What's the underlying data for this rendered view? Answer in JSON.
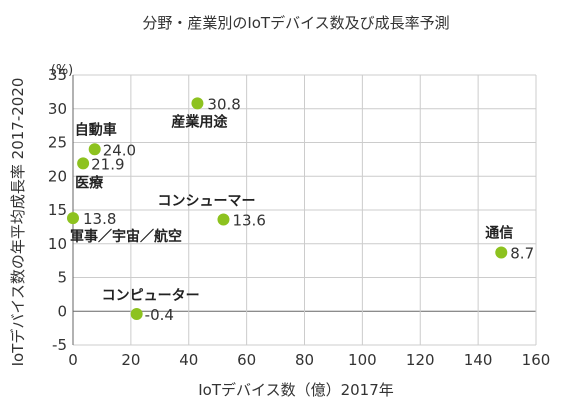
{
  "chart_data": {
    "type": "scatter",
    "title": "分野・産業別のIoTデバイス数及び成長率予測",
    "xlabel": "IoTデバイス数（億）2017年",
    "ylabel": "IoTデバイス数の年平均成長率 2017-2020",
    "y_unit": "(%)",
    "xlim": [
      0,
      160
    ],
    "ylim": [
      -5,
      35
    ],
    "x_ticks": [
      "0",
      "20",
      "40",
      "60",
      "80",
      "100",
      "120",
      "140",
      "160"
    ],
    "y_ticks": [
      "-5",
      "0",
      "5",
      "10",
      "15",
      "20",
      "25",
      "30",
      "35"
    ],
    "grid": true,
    "point_color": "#8dc21f",
    "points": [
      {
        "name": "産業用途",
        "x": 43,
        "y": 30.8,
        "value_label": "30.8"
      },
      {
        "name": "自動車",
        "x": 7.5,
        "y": 24.0,
        "value_label": "24.0"
      },
      {
        "name": "医療",
        "x": 3.5,
        "y": 21.9,
        "value_label": "21.9"
      },
      {
        "name": "軍事／宇宙／航空",
        "x": 0,
        "y": 13.8,
        "value_label": "13.8"
      },
      {
        "name": "コンシューマー",
        "x": 52,
        "y": 13.6,
        "value_label": "13.6"
      },
      {
        "name": "通信",
        "x": 148,
        "y": 8.7,
        "value_label": "8.7"
      },
      {
        "name": "コンピューター",
        "x": 22,
        "y": -0.4,
        "value_label": "-0.4"
      }
    ]
  }
}
